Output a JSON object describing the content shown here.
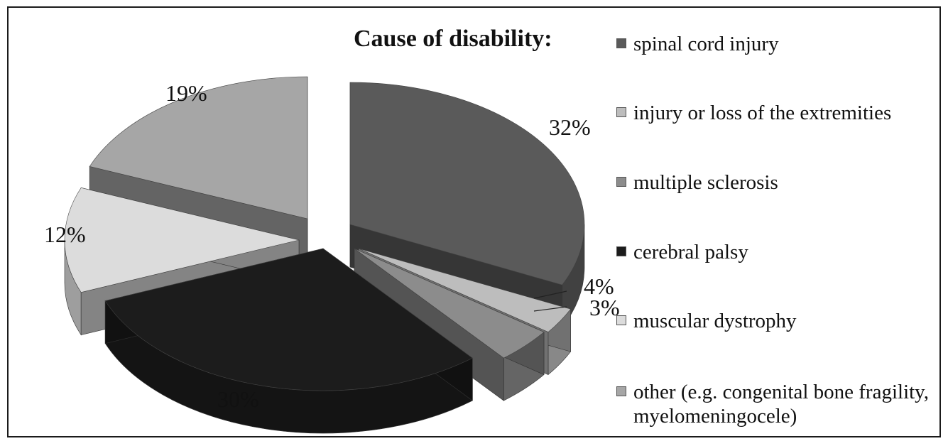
{
  "chart_data": {
    "type": "pie",
    "title": "Cause of disability:",
    "categories": [
      "spinal cord injury",
      "injury or loss of the extremities",
      "multiple sclerosis",
      "cerebral palsy",
      "muscular dystrophy",
      "other (e.g. congenital bone fragility, myelomeningocele)"
    ],
    "values": [
      32,
      3,
      4,
      30,
      12,
      19
    ],
    "value_labels": [
      "32%",
      "3%",
      "4%",
      "30%",
      "12%",
      "19%"
    ],
    "style": "3d exploded pie",
    "legend_position": "right",
    "colors": [
      "#5a5a5a",
      "#bdbdbd",
      "#8c8c8c",
      "#1c1c1c",
      "#dcdcdc",
      "#a6a6a6"
    ]
  }
}
